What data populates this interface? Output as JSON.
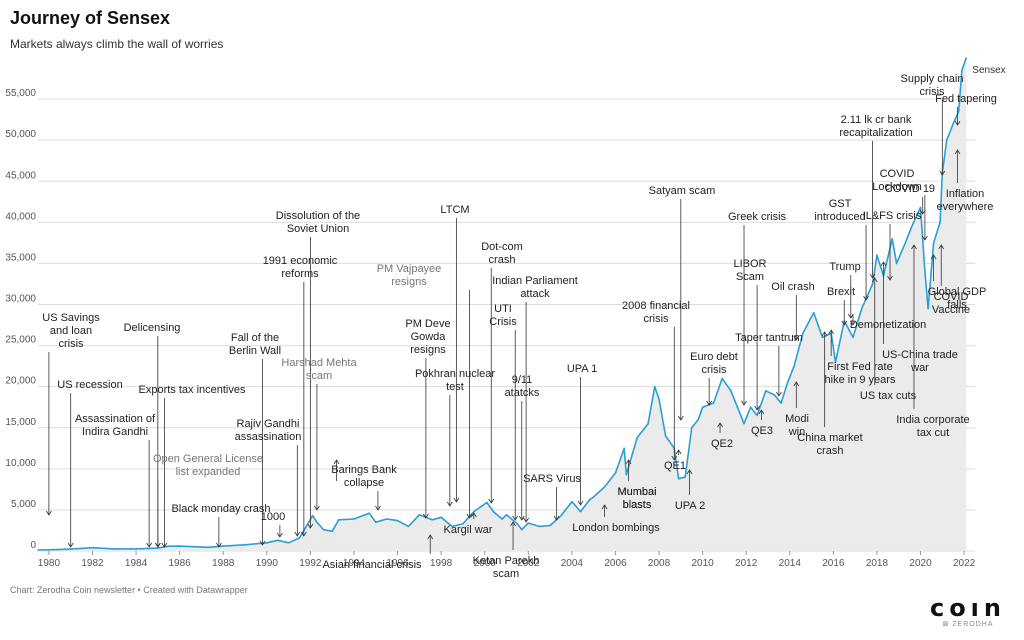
{
  "header": {
    "title": "Journey of Sensex",
    "subtitle": "Markets always climb the wall of worries"
  },
  "footer": {
    "source": "Chart: Zerodha Coin newsletter • Created with Datawrapper"
  },
  "brand": {
    "name": "coın",
    "sub": "⊠ ZERODHA"
  },
  "colors": {
    "line": "#2a9fd6",
    "area": "#ebebeb",
    "grid": "#dddddd",
    "annotation": "#222222"
  },
  "chart_data": {
    "type": "area",
    "title": "Journey of Sensex",
    "subtitle": "Markets always climb the wall of worries",
    "xlabel": "",
    "ylabel": "",
    "xlim": [
      1979.5,
      2022.5
    ],
    "ylim": [
      0,
      60000
    ],
    "grid": "horizontal",
    "legend": "none",
    "x_ticks": [
      "1980",
      "1982",
      "1984",
      "1986",
      "1988",
      "1990",
      "1992",
      "1994",
      "1996",
      "1998",
      "2000",
      "2002",
      "2004",
      "2006",
      "2008",
      "2010",
      "2012",
      "2014",
      "2016",
      "2018",
      "2020",
      "2022"
    ],
    "y_ticks": [
      "0",
      "5,000",
      "10,000",
      "15,000",
      "20,000",
      "25,000",
      "30,000",
      "35,000",
      "40,000",
      "45,000",
      "50,000",
      "55,000"
    ],
    "series": [
      {
        "name": "Sensex",
        "x": [
          1979.5,
          1980,
          1981,
          1982,
          1983,
          1984,
          1985,
          1985.5,
          1986,
          1987,
          1987.3,
          1988,
          1989,
          1990,
          1990.5,
          1991,
          1991.5,
          1992.1,
          1992.3,
          1992.6,
          1993,
          1993.3,
          1994,
          1994.7,
          1995,
          1995.5,
          1996,
          1996.5,
          1997,
          1997.6,
          1998,
          1998.5,
          1999,
          1999.5,
          2000.1,
          2000.4,
          2000.8,
          2001,
          2001.5,
          2001.7,
          2002,
          2002.5,
          2003,
          2003.5,
          2004,
          2004.4,
          2004.8,
          2005,
          2005.5,
          2006,
          2006.4,
          2006.5,
          2007,
          2007.5,
          2007.8,
          2008,
          2008.3,
          2008.7,
          2008.9,
          2009.2,
          2009.5,
          2009.8,
          2010,
          2010.5,
          2010.9,
          2011.3,
          2011.9,
          2012.2,
          2012.5,
          2012.9,
          2013.3,
          2013.6,
          2013.9,
          2014.2,
          2014.6,
          2015.1,
          2015.5,
          2015.9,
          2016.1,
          2016.5,
          2016.9,
          2017.3,
          2017.8,
          2018.0,
          2018.3,
          2018.7,
          2018.9,
          2019.3,
          2019.6,
          2020.0,
          2020.2,
          2020.35,
          2020.6,
          2020.9,
          2021.0,
          2021.2,
          2021.5,
          2021.75,
          2021.9,
          2022.1
        ],
        "y": [
          120,
          150,
          230,
          400,
          250,
          260,
          350,
          580,
          600,
          480,
          450,
          600,
          750,
          1000,
          1300,
          1000,
          1600,
          4300,
          3500,
          2600,
          2400,
          3800,
          3900,
          4600,
          3500,
          3900,
          3700,
          3000,
          4400,
          3800,
          4100,
          3000,
          3300,
          4800,
          5900,
          4800,
          3900,
          4400,
          3300,
          2600,
          3400,
          3000,
          3100,
          4300,
          6000,
          4800,
          6200,
          6600,
          7800,
          9500,
          12500,
          9300,
          13800,
          15500,
          20000,
          18500,
          14000,
          12500,
          8800,
          9000,
          15000,
          16000,
          17500,
          18000,
          21000,
          19500,
          15500,
          17500,
          16500,
          19500,
          19000,
          18000,
          20500,
          22500,
          26500,
          29000,
          26000,
          26500,
          23000,
          28000,
          26000,
          29500,
          32500,
          36000,
          33500,
          38000,
          35000,
          37500,
          39500,
          41800,
          34000,
          29500,
          37500,
          40000,
          46000,
          50000,
          52000,
          53500,
          58500,
          60000
        ]
      }
    ],
    "annotations": [
      {
        "label": "US Savings and loan crisis",
        "x": 1980.0,
        "y": 500,
        "grey": false
      },
      {
        "label": "US recession",
        "x": 1981.0,
        "y": 500,
        "grey": false
      },
      {
        "label": "Delicensing",
        "x": 1985.0,
        "y": 500,
        "grey": false
      },
      {
        "label": "Assassination of Indira Gandhi",
        "x": 1984.6,
        "y": 500,
        "grey": false
      },
      {
        "label": "Exports tax incentives",
        "x": 1985.3,
        "y": 500,
        "grey": false
      },
      {
        "label": "Open General License list expanded",
        "x": 1985.0,
        "y": 500,
        "grey": true
      },
      {
        "label": "Black monday crash",
        "x": 1987.8,
        "y": 500,
        "grey": false
      },
      {
        "label": "Fall of the Berlin Wall",
        "x": 1989.8,
        "y": 1000,
        "grey": false
      },
      {
        "label": "Rajiv Gandhi assassination",
        "x": 1991.4,
        "y": 1600,
        "grey": false
      },
      {
        "label": "1000",
        "x": 1990.6,
        "y": 1300,
        "grey": false
      },
      {
        "label": "1991 economic reforms",
        "x": 1991.7,
        "y": 1700,
        "grey": false
      },
      {
        "label": "Dissolution of the Soviet Union",
        "x": 1992.0,
        "y": 2000,
        "grey": false
      },
      {
        "label": "Harshad Mehta scam",
        "x": 1992.3,
        "y": 4300,
        "grey": true
      },
      {
        "label": "Mumbai blasts",
        "x": 1993.2,
        "y": 2600,
        "grey": false
      },
      {
        "label": "Barings Bank collapse",
        "x": 1995.1,
        "y": 4200,
        "grey": false
      },
      {
        "label": "Asian financial crisis",
        "x": 1997.5,
        "y": 3800,
        "grey": false
      },
      {
        "label": "PM Vajpayee resigns",
        "x": 1999.3,
        "y": 3800,
        "grey": true
      },
      {
        "label": "PM Deve Gowda resigns",
        "x": 1997.3,
        "y": 3900,
        "grey": false
      },
      {
        "label": "Pokhran nuclear test",
        "x": 1998.4,
        "y": 4100,
        "grey": false
      },
      {
        "label": "LTCM",
        "x": 1998.7,
        "y": 3200,
        "grey": false
      },
      {
        "label": "Kargil war",
        "x": 1999.5,
        "y": 4800,
        "grey": false
      },
      {
        "label": "Dot-com crash",
        "x": 2000.3,
        "y": 5500,
        "grey": false
      },
      {
        "label": "UTI Crisis",
        "x": 2001.4,
        "y": 3400,
        "grey": false
      },
      {
        "label": "Indian Parliament attack",
        "x": 2001.9,
        "y": 3000,
        "grey": false
      },
      {
        "label": "Ketan Parekh scam",
        "x": 2001.3,
        "y": 3500,
        "grey": false
      },
      {
        "label": "9/11 atatcks",
        "x": 2001.7,
        "y": 2800,
        "grey": false
      },
      {
        "label": "SARS Virus",
        "x": 2003.3,
        "y": 3400,
        "grey": false
      },
      {
        "label": "UPA 1",
        "x": 2004.4,
        "y": 5000,
        "grey": false
      },
      {
        "label": "London bombings",
        "x": 2005.5,
        "y": 6800,
        "grey": false
      },
      {
        "label": "Mumbai blasts",
        "x": 2006.6,
        "y": 11000,
        "grey": false
      },
      {
        "label": "2008 financial crisis",
        "x": 2008.7,
        "y": 12800,
        "grey": false
      },
      {
        "label": "Satyam scam",
        "x": 2009.0,
        "y": 16000,
        "grey": false
      },
      {
        "label": "QE1",
        "x": 2008.9,
        "y": 9000,
        "grey": false
      },
      {
        "label": "UPA 2",
        "x": 2009.4,
        "y": 12000,
        "grey": false
      },
      {
        "label": "Euro debt crisis",
        "x": 2010.3,
        "y": 17500,
        "grey": false
      },
      {
        "label": "QE2",
        "x": 2010.8,
        "y": 18500,
        "grey": false
      },
      {
        "label": "Greek crisis",
        "x": 2011.9,
        "y": 17000,
        "grey": false
      },
      {
        "label": "LIBOR Scam",
        "x": 2012.5,
        "y": 17800,
        "grey": false
      },
      {
        "label": "QE3",
        "x": 2012.7,
        "y": 17500,
        "grey": false
      },
      {
        "label": "Oil crash",
        "x": 2014.3,
        "y": 23500,
        "grey": false
      },
      {
        "label": "Taper tantrum",
        "x": 2013.5,
        "y": 18200,
        "grey": false
      },
      {
        "label": "Modi win",
        "x": 2014.3,
        "y": 20500,
        "grey": false
      },
      {
        "label": "China market crash",
        "x": 2015.6,
        "y": 27200,
        "grey": false
      },
      {
        "label": "Brexit",
        "x": 2016.5,
        "y": 27000,
        "grey": false
      },
      {
        "label": "Trump",
        "x": 2016.8,
        "y": 28000,
        "grey": false
      },
      {
        "label": "Demonetization",
        "x": 2016.9,
        "y": 26500,
        "grey": false
      },
      {
        "label": "GST introduced",
        "x": 2017.5,
        "y": 31500,
        "grey": false
      },
      {
        "label": "First Fed rate hike in 9 years",
        "x": 2015.9,
        "y": 25500,
        "grey": false
      },
      {
        "label": "US tax cuts",
        "x": 2017.9,
        "y": 34000,
        "grey": false
      },
      {
        "label": "IL&FS crisis",
        "x": 2018.6,
        "y": 35500,
        "grey": false
      },
      {
        "label": "2.11 lk cr bank recapitalization",
        "x": 2017.8,
        "y": 33500,
        "grey": false
      },
      {
        "label": "US-China trade war",
        "x": 2018.3,
        "y": 35000,
        "grey": false
      },
      {
        "label": "India corporate tax cut",
        "x": 2019.7,
        "y": 37000,
        "grey": false
      },
      {
        "label": "COVID Lockdown",
        "x": 2020.2,
        "y": 29500,
        "grey": false
      },
      {
        "label": "COVID 19",
        "x": 2020.1,
        "y": 38000,
        "grey": false
      },
      {
        "label": "Global GDP falls",
        "x": 2020.6,
        "y": 37000,
        "grey": false
      },
      {
        "label": "COVID Vaccine",
        "x": 2020.95,
        "y": 46500,
        "grey": false
      },
      {
        "label": "Supply chain crisis",
        "x": 2021.0,
        "y": 47000,
        "grey": false
      },
      {
        "label": "Fed tapering",
        "x": 2021.7,
        "y": 52500,
        "grey": false
      },
      {
        "label": "Inflation everywhere",
        "x": 2021.7,
        "y": 53000,
        "grey": false
      }
    ]
  }
}
